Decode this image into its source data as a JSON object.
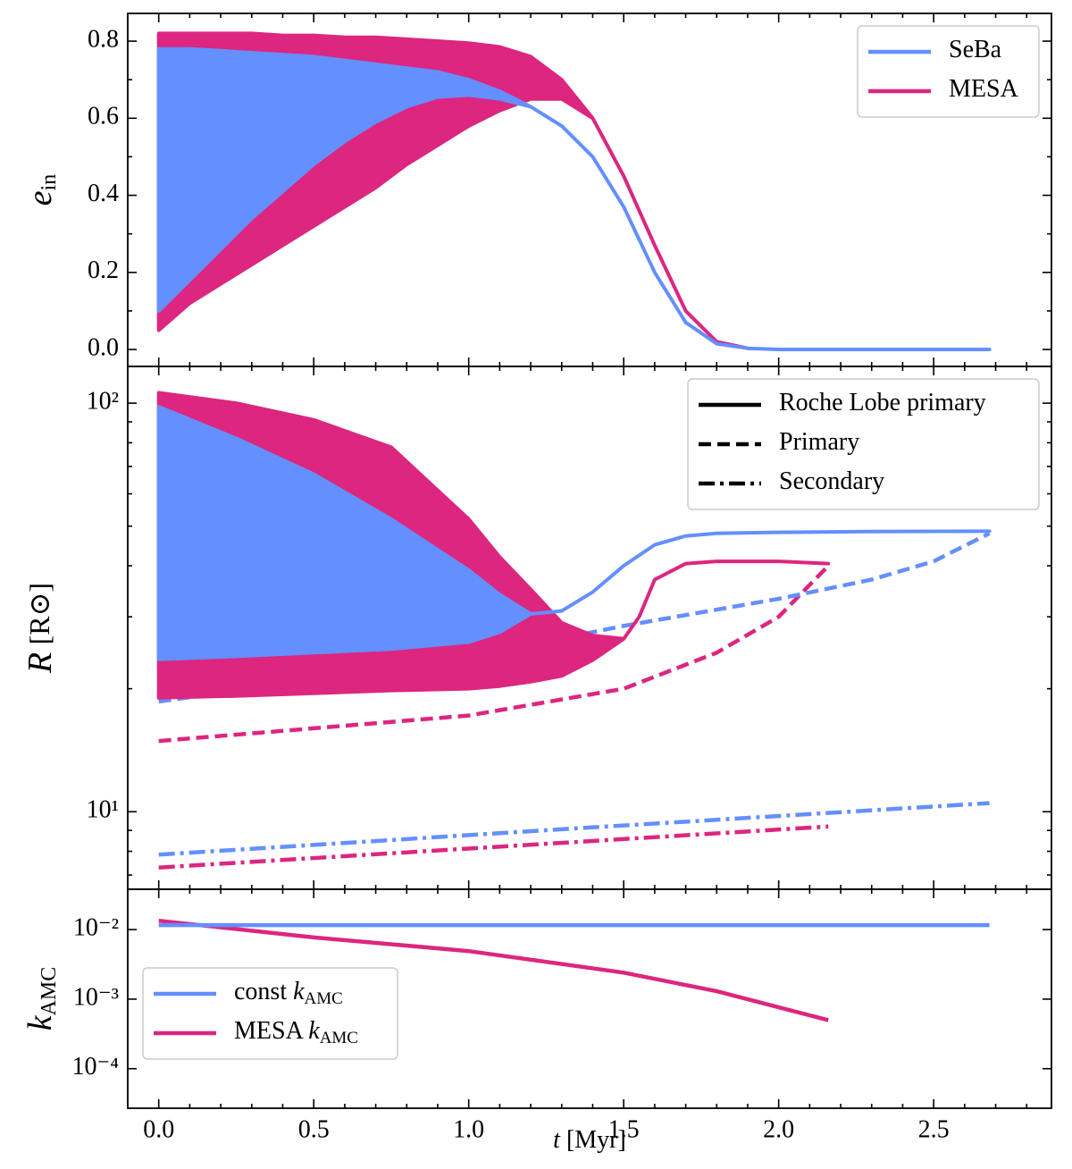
{
  "chart_data": [
    {
      "type": "line",
      "ylabel": "e",
      "ylabel_sub": "in",
      "legend": "upper right",
      "xlim": [
        -0.1,
        2.88
      ],
      "xticks": [
        0,
        0.5,
        1,
        1.5,
        2,
        2.5
      ],
      "xminorticks": [
        0.1,
        0.2,
        0.3,
        0.4,
        0.6,
        0.7,
        0.8,
        0.9,
        1.1,
        1.2,
        1.3,
        1.4,
        1.6,
        1.7,
        1.8,
        1.9,
        2.1,
        2.2,
        2.3,
        2.4,
        2.6,
        2.7,
        2.8
      ],
      "ylim": [
        -0.044,
        0.872
      ],
      "yticks": [
        {
          "value": 0,
          "label": "0.0"
        },
        0.2,
        0.4,
        0.6,
        0.8
      ],
      "yminorticks": [
        0.1,
        0.3,
        0.5,
        0.7
      ],
      "series": [
        {
          "name": "SeBa",
          "color": "#648fff",
          "style": "band",
          "x": [
            0,
            0.1,
            0.2,
            0.3,
            0.4,
            0.5,
            0.6,
            0.7,
            0.8,
            0.9,
            1.0,
            1.1,
            1.2,
            1.3,
            1.4,
            1.5,
            1.6,
            1.7,
            1.8,
            1.9,
            2.0,
            2.68
          ],
          "values": [
            0.78,
            0.78,
            0.775,
            0.77,
            0.765,
            0.76,
            0.75,
            0.74,
            0.73,
            0.72,
            0.7,
            0.67,
            0.63,
            0.58,
            0.5,
            0.37,
            0.2,
            0.07,
            0.015,
            0.003,
            0,
            0
          ],
          "values_low": [
            0.1,
            0.18,
            0.26,
            0.34,
            0.41,
            0.48,
            0.54,
            0.59,
            0.63,
            0.655,
            0.66,
            0.65,
            0.63,
            0.58,
            0.5,
            0.37,
            0.2,
            0.07,
            0.015,
            0.003,
            0,
            0
          ]
        },
        {
          "name": "MESA",
          "color": "#dc267f",
          "style": "band",
          "x": [
            0,
            0.1,
            0.2,
            0.3,
            0.4,
            0.5,
            0.6,
            0.7,
            0.8,
            0.9,
            1.0,
            1.1,
            1.2,
            1.3,
            1.4,
            1.5,
            1.6,
            1.7,
            1.8,
            1.9
          ],
          "values": [
            0.82,
            0.82,
            0.82,
            0.82,
            0.815,
            0.815,
            0.81,
            0.81,
            0.805,
            0.8,
            0.795,
            0.785,
            0.76,
            0.7,
            0.6,
            0.45,
            0.27,
            0.1,
            0.02,
            0.003
          ],
          "values_low": [
            0.05,
            0.12,
            0.17,
            0.22,
            0.27,
            0.32,
            0.37,
            0.42,
            0.48,
            0.53,
            0.58,
            0.62,
            0.65,
            0.65,
            0.6,
            0.45,
            0.27,
            0.1,
            0.02,
            0.003
          ]
        }
      ]
    },
    {
      "type": "line",
      "ylabel": "R",
      "ylabel_unit": "[R⊙]",
      "ylog": true,
      "legend": "upper right",
      "xlim": [
        -0.1,
        2.88
      ],
      "xticks": [
        0,
        0.5,
        1,
        1.5,
        2,
        2.5
      ],
      "xminorticks": [
        0.1,
        0.2,
        0.3,
        0.4,
        0.6,
        0.7,
        0.8,
        0.9,
        1.1,
        1.2,
        1.3,
        1.4,
        1.6,
        1.7,
        1.8,
        1.9,
        2.1,
        2.2,
        2.3,
        2.4,
        2.6,
        2.7,
        2.8
      ],
      "ylim": [
        6.46,
        123
      ],
      "yticks": [
        {
          "value": 10,
          "label": "10¹"
        },
        {
          "value": 100,
          "label": "10²"
        }
      ],
      "yminorticks": [
        7,
        8,
        9,
        20,
        30,
        40,
        50,
        60,
        70,
        80,
        90
      ],
      "legend_entries": [
        {
          "name": "Roche Lobe primary",
          "style": "solid"
        },
        {
          "name": "Primary",
          "style": "dashed"
        },
        {
          "name": "Secondary",
          "style": "dashdot"
        }
      ],
      "series": [
        {
          "color": "#648fff",
          "style": "band",
          "x": [
            0,
            0.25,
            0.5,
            0.75,
            1.0,
            1.1,
            1.2,
            1.3,
            1.4,
            1.5,
            1.6,
            1.7,
            1.8,
            2.0,
            2.3,
            2.68
          ],
          "values": [
            98,
            82,
            67,
            52,
            39,
            34,
            30.5,
            31,
            34.5,
            40,
            45,
            47.3,
            48,
            48.3,
            48.5,
            48.6
          ],
          "values_low": [
            23.6,
            24,
            24.5,
            25,
            26,
            27.5,
            30.5,
            31,
            34.5,
            40,
            45,
            47.3,
            48,
            48.3,
            48.5,
            48.6
          ]
        },
        {
          "color": "#dc267f",
          "style": "band",
          "x": [
            0,
            0.25,
            0.5,
            0.75,
            1.0,
            1.1,
            1.2,
            1.3,
            1.4,
            1.5,
            1.55,
            1.6,
            1.7,
            1.8,
            2.0,
            2.16
          ],
          "values": [
            106,
            100,
            91,
            78,
            52,
            42,
            35,
            29,
            27,
            26.5,
            30,
            37,
            40.5,
            41,
            41,
            40.5
          ],
          "values_low": [
            19,
            19.2,
            19.5,
            19.8,
            20,
            20.3,
            20.8,
            21.5,
            23.5,
            26.5,
            30,
            37,
            40.5,
            41,
            41,
            40.5
          ]
        },
        {
          "color": "#648fff",
          "style": "dashed",
          "x": [
            0,
            0.5,
            1.0,
            1.5,
            2.0,
            2.3,
            2.5,
            2.68
          ],
          "values": [
            18.6,
            21,
            23.9,
            28.5,
            33.2,
            37,
            41,
            48
          ]
        },
        {
          "color": "#dc267f",
          "style": "dashed",
          "x": [
            0,
            0.5,
            1.0,
            1.5,
            1.8,
            2.0,
            2.16
          ],
          "values": [
            14.9,
            16,
            17.2,
            20,
            24.5,
            30,
            40
          ]
        },
        {
          "color": "#648fff",
          "style": "dashdot",
          "x": [
            0,
            1.34,
            2.68
          ],
          "values": [
            7.85,
            9.1,
            10.5
          ]
        },
        {
          "color": "#dc267f",
          "style": "dashdot",
          "x": [
            0,
            2.16
          ],
          "values": [
            7.3,
            9.2
          ]
        }
      ]
    },
    {
      "type": "line",
      "ylabel": "k",
      "ylabel_sub": "AMC",
      "ylog": true,
      "legend": "lower left",
      "xlabel": "t",
      "xlabel_unit": "[Myr]",
      "show_xticklabels": true,
      "xlim": [
        -0.1,
        2.88
      ],
      "xticks": [
        {
          "value": 0,
          "label": "0.0"
        },
        0.5,
        {
          "value": 1,
          "label": "1.0"
        },
        1.5,
        {
          "value": 2,
          "label": "2.0"
        },
        2.5
      ],
      "xminorticks": [
        0.1,
        0.2,
        0.3,
        0.4,
        0.6,
        0.7,
        0.8,
        0.9,
        1.1,
        1.2,
        1.3,
        1.4,
        1.6,
        1.7,
        1.8,
        1.9,
        2.1,
        2.2,
        2.3,
        2.4,
        2.6,
        2.7,
        2.8
      ],
      "ylim": [
        2.7e-05,
        0.038
      ],
      "yticks": [
        {
          "value": 0.0001,
          "label": "10⁻⁴"
        },
        {
          "value": 0.001,
          "label": "10⁻³"
        },
        {
          "value": 0.01,
          "label": "10⁻²"
        }
      ],
      "series": [
        {
          "name": "const",
          "name_var": "k",
          "name_sub": "AMC",
          "color": "#648fff",
          "style": "solid",
          "x": [
            0,
            2.68
          ],
          "values": [
            0.0116,
            0.0116
          ]
        },
        {
          "name": "MESA",
          "name_var": "k",
          "name_sub": "AMC",
          "color": "#dc267f",
          "style": "solid",
          "x": [
            0,
            0.5,
            1.0,
            1.5,
            1.8,
            2.16
          ],
          "values": [
            0.0134,
            0.0077,
            0.0049,
            0.0024,
            0.0013,
            0.0005
          ]
        }
      ]
    }
  ]
}
